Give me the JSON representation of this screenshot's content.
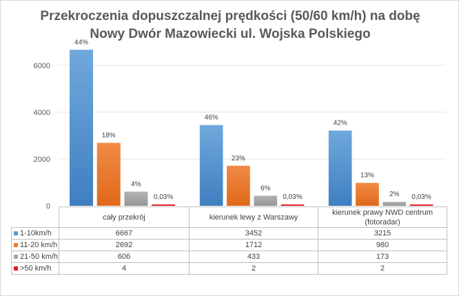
{
  "chart_data": {
    "type": "bar",
    "title": [
      "Przekroczenia dopuszczalnej prędkości (50/60 km/h) na dobę",
      "Nowy Dwór Mazowiecki ul. Wojska Polskiego"
    ],
    "categories": [
      "cały przekrój",
      "kierunek lewy z Warszawy",
      "kierunek prawy NWD centrum (fotoradar)"
    ],
    "series": [
      {
        "name": "1-10km/h",
        "color": "#5b9bd5",
        "values": [
          6667,
          3452,
          3215
        ],
        "labels": [
          "44%",
          "46%",
          "42%"
        ]
      },
      {
        "name": "11-20 km/h",
        "color": "#ed7d31",
        "values": [
          2692,
          1712,
          980
        ],
        "labels": [
          "18%",
          "23%",
          "13%"
        ]
      },
      {
        "name": "21-50 km/h",
        "color": "#a5a5a5",
        "values": [
          606,
          433,
          173
        ],
        "labels": [
          "4%",
          "6%",
          "2%"
        ]
      },
      {
        "name": ">50 km/h",
        "color": "#e31a1c",
        "values": [
          4,
          2,
          2
        ],
        "labels": [
          "0,03%",
          "0,03%",
          "0,03%"
        ]
      }
    ],
    "yticks": [
      "0",
      "2000",
      "4000",
      "6000"
    ],
    "ylim": [
      0,
      7000
    ],
    "grid": true,
    "legend": "data-table"
  }
}
